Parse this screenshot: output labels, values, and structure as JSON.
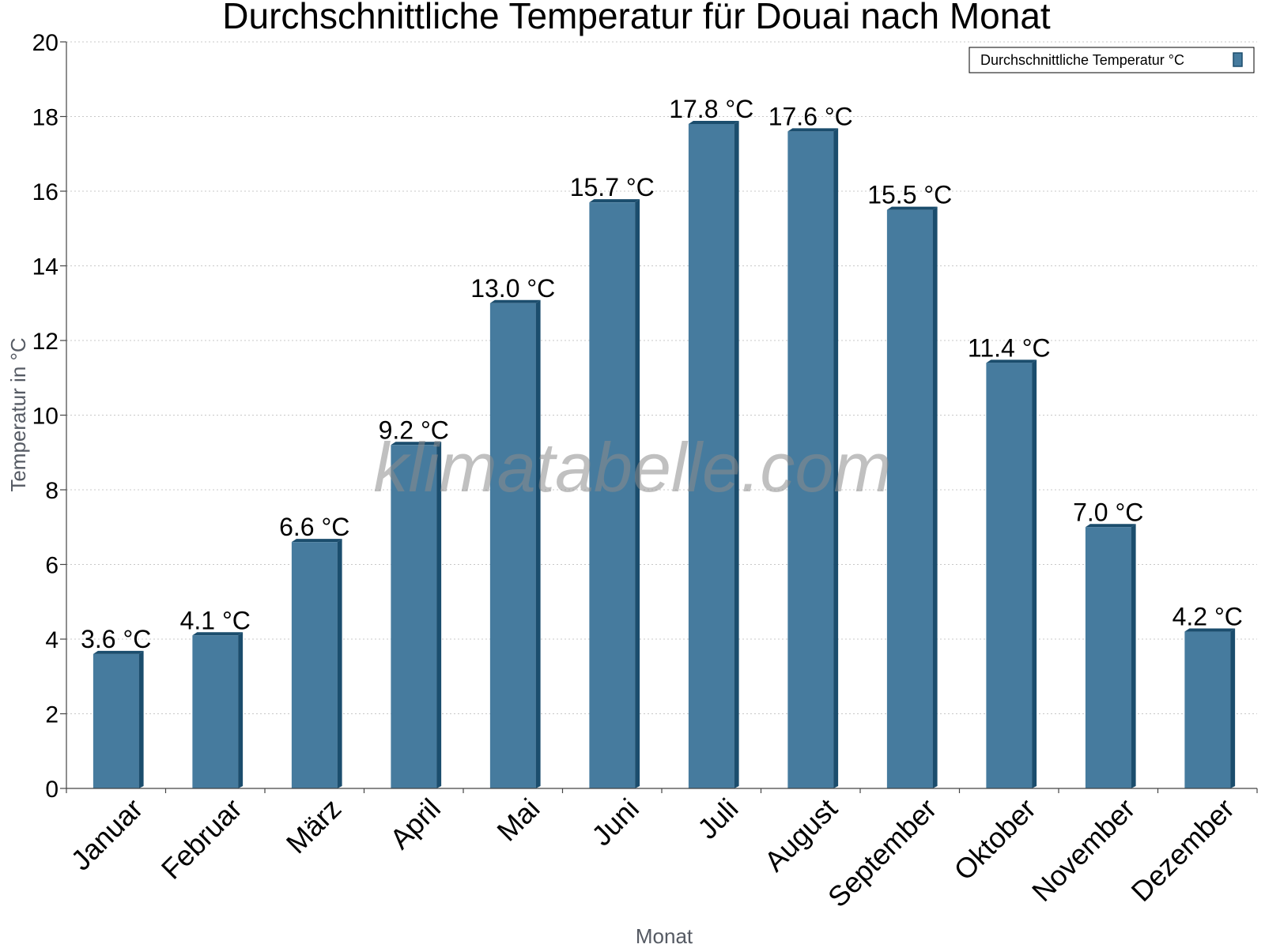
{
  "watermark": "klimatabelle.com",
  "colors": {
    "bar_face": "#467b9e",
    "bar_edge": "#1b4d6d",
    "axis": "#444444",
    "grid": "#c8c8c8",
    "axis_title": "#555a63"
  },
  "chart_data": {
    "type": "bar",
    "title": "Durchschnittliche Temperatur für Douai nach Monat",
    "xlabel": "Monat",
    "ylabel": "Temperatur in °C",
    "ylim": [
      0,
      20
    ],
    "yticks": [
      0,
      2,
      4,
      6,
      8,
      10,
      12,
      14,
      16,
      18,
      20
    ],
    "grid": true,
    "legend_position": "top-right",
    "categories": [
      "Januar",
      "Februar",
      "März",
      "April",
      "Mai",
      "Juni",
      "Juli",
      "August",
      "September",
      "Oktober",
      "November",
      "Dezember"
    ],
    "series": [
      {
        "name": "Durchschnittliche Temperatur °C",
        "values": [
          3.6,
          4.1,
          6.6,
          9.2,
          13.0,
          15.7,
          17.8,
          17.6,
          15.5,
          11.4,
          7.0,
          4.2
        ],
        "labels": [
          "3.6 °C",
          "4.1 °C",
          "6.6 °C",
          "9.2 °C",
          "13.0 °C",
          "15.7 °C",
          "17.8 °C",
          "17.6 °C",
          "15.5 °C",
          "11.4 °C",
          "7.0 °C",
          "4.2 °C"
        ]
      }
    ]
  }
}
